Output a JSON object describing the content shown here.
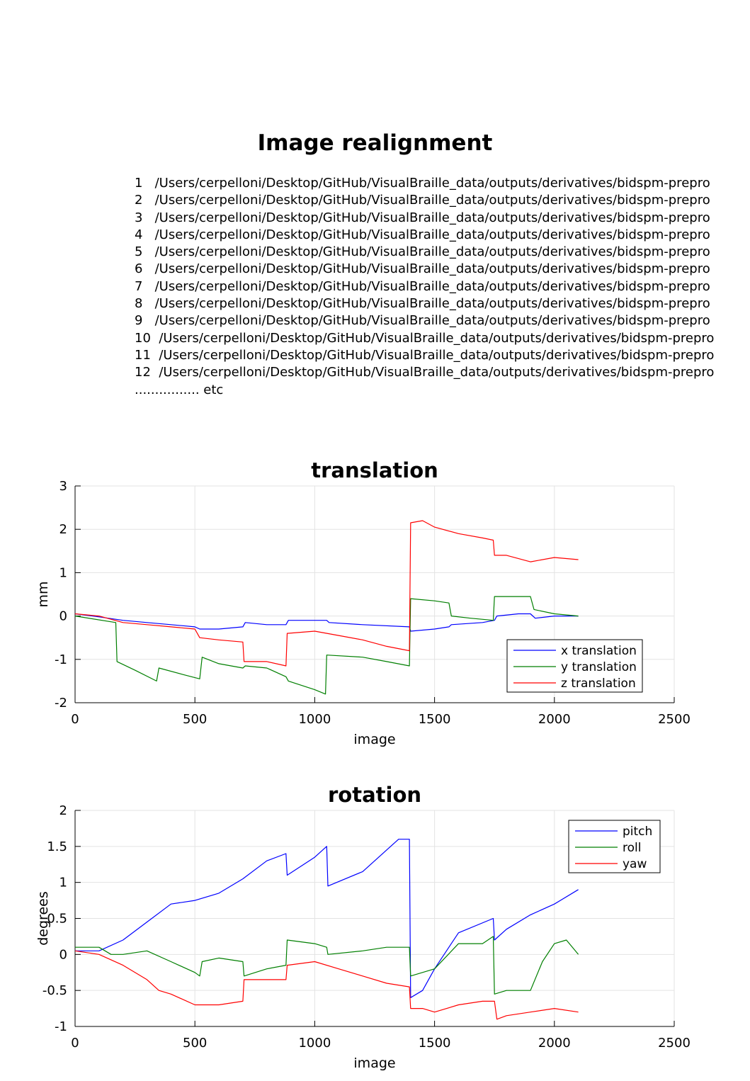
{
  "page": {
    "title": "Image realignment",
    "files": [
      "1   /Users/cerpelloni/Desktop/GitHub/VisualBraille_data/outputs/derivatives/bidspm-prepro",
      "2   /Users/cerpelloni/Desktop/GitHub/VisualBraille_data/outputs/derivatives/bidspm-prepro",
      "3   /Users/cerpelloni/Desktop/GitHub/VisualBraille_data/outputs/derivatives/bidspm-prepro",
      "4   /Users/cerpelloni/Desktop/GitHub/VisualBraille_data/outputs/derivatives/bidspm-prepro",
      "5   /Users/cerpelloni/Desktop/GitHub/VisualBraille_data/outputs/derivatives/bidspm-prepro",
      "6   /Users/cerpelloni/Desktop/GitHub/VisualBraille_data/outputs/derivatives/bidspm-prepro",
      "7   /Users/cerpelloni/Desktop/GitHub/VisualBraille_data/outputs/derivatives/bidspm-prepro",
      "8   /Users/cerpelloni/Desktop/GitHub/VisualBraille_data/outputs/derivatives/bidspm-prepro",
      "9   /Users/cerpelloni/Desktop/GitHub/VisualBraille_data/outputs/derivatives/bidspm-prepro",
      "10  /Users/cerpelloni/Desktop/GitHub/VisualBraille_data/outputs/derivatives/bidspm-prepro",
      "11  /Users/cerpelloni/Desktop/GitHub/VisualBraille_data/outputs/derivatives/bidspm-prepro",
      "12  /Users/cerpelloni/Desktop/GitHub/VisualBraille_data/outputs/derivatives/bidspm-prepro",
      "................ etc"
    ]
  },
  "chart_data": [
    {
      "type": "line",
      "title": "translation",
      "xlabel": "image",
      "ylabel": "mm",
      "xlim": [
        0,
        2500
      ],
      "ylim": [
        -2,
        3
      ],
      "xticks": [
        0,
        500,
        1000,
        1500,
        2000,
        2500
      ],
      "yticks": [
        3,
        2,
        1,
        0,
        -1,
        -2
      ],
      "grid": true,
      "legend_position": "bottom-right",
      "series": [
        {
          "name": "x translation",
          "color": "#0000ff",
          "x": [
            0,
            100,
            200,
            300,
            400,
            500,
            520,
            600,
            700,
            710,
            800,
            880,
            890,
            1000,
            1050,
            1060,
            1200,
            1395,
            1400,
            1500,
            1560,
            1570,
            1700,
            1750,
            1760,
            1850,
            1900,
            1920,
            2000,
            2100
          ],
          "y": [
            0.05,
            -0.02,
            -0.1,
            -0.15,
            -0.2,
            -0.25,
            -0.3,
            -0.3,
            -0.25,
            -0.15,
            -0.2,
            -0.2,
            -0.1,
            -0.1,
            -0.1,
            -0.15,
            -0.2,
            -0.25,
            -0.35,
            -0.3,
            -0.25,
            -0.2,
            -0.15,
            -0.1,
            0.0,
            0.05,
            0.05,
            -0.05,
            0.0,
            0.0
          ]
        },
        {
          "name": "y translation",
          "color": "#007f00",
          "x": [
            0,
            170,
            175,
            250,
            340,
            350,
            450,
            520,
            530,
            600,
            700,
            710,
            800,
            880,
            890,
            1000,
            1045,
            1050,
            1200,
            1300,
            1395,
            1400,
            1500,
            1560,
            1570,
            1650,
            1745,
            1750,
            1800,
            1900,
            1915,
            2000,
            2100
          ],
          "y": [
            0.0,
            -0.15,
            -1.05,
            -1.25,
            -1.5,
            -1.2,
            -1.35,
            -1.45,
            -0.95,
            -1.1,
            -1.2,
            -1.15,
            -1.2,
            -1.4,
            -1.5,
            -1.7,
            -1.8,
            -0.9,
            -0.95,
            -1.05,
            -1.15,
            0.4,
            0.35,
            0.3,
            0.0,
            -0.05,
            -0.1,
            0.45,
            0.45,
            0.45,
            0.15,
            0.05,
            0.0
          ]
        },
        {
          "name": "z translation",
          "color": "#ff0000",
          "x": [
            0,
            100,
            200,
            300,
            400,
            500,
            520,
            600,
            700,
            705,
            800,
            880,
            885,
            1000,
            1100,
            1200,
            1300,
            1395,
            1400,
            1450,
            1500,
            1600,
            1700,
            1745,
            1750,
            1800,
            1900,
            2000,
            2100
          ],
          "y": [
            0.05,
            0.0,
            -0.15,
            -0.2,
            -0.25,
            -0.3,
            -0.5,
            -0.55,
            -0.6,
            -1.05,
            -1.05,
            -1.15,
            -0.4,
            -0.35,
            -0.45,
            -0.55,
            -0.7,
            -0.8,
            2.15,
            2.2,
            2.05,
            1.9,
            1.8,
            1.75,
            1.4,
            1.4,
            1.25,
            1.35,
            1.3
          ]
        }
      ]
    },
    {
      "type": "line",
      "title": "rotation",
      "xlabel": "image",
      "ylabel": "degrees",
      "xlim": [
        0,
        2500
      ],
      "ylim": [
        -1,
        2
      ],
      "xticks": [
        0,
        500,
        1000,
        1500,
        2000,
        2500
      ],
      "yticks": [
        2,
        1.5,
        1,
        0.5,
        0,
        -0.5,
        -1
      ],
      "grid": true,
      "legend_position": "top-right",
      "series": [
        {
          "name": "pitch",
          "color": "#0000ff",
          "x": [
            0,
            100,
            200,
            300,
            400,
            500,
            600,
            700,
            800,
            880,
            885,
            1000,
            1050,
            1055,
            1200,
            1300,
            1350,
            1395,
            1400,
            1450,
            1500,
            1600,
            1745,
            1750,
            1800,
            1900,
            2000,
            2100
          ],
          "y": [
            0.05,
            0.05,
            0.2,
            0.45,
            0.7,
            0.75,
            0.85,
            1.05,
            1.3,
            1.4,
            1.1,
            1.35,
            1.5,
            0.95,
            1.15,
            1.45,
            1.6,
            1.6,
            -0.6,
            -0.5,
            -0.2,
            0.3,
            0.5,
            0.2,
            0.35,
            0.55,
            0.7,
            0.9
          ]
        },
        {
          "name": "roll",
          "color": "#007f00",
          "x": [
            0,
            100,
            150,
            200,
            300,
            400,
            500,
            520,
            530,
            600,
            700,
            705,
            800,
            880,
            885,
            1000,
            1050,
            1055,
            1200,
            1300,
            1395,
            1400,
            1500,
            1600,
            1700,
            1745,
            1750,
            1800,
            1900,
            1950,
            2000,
            2050,
            2100
          ],
          "y": [
            0.1,
            0.1,
            0.0,
            0.0,
            0.05,
            -0.1,
            -0.25,
            -0.3,
            -0.1,
            -0.05,
            -0.1,
            -0.3,
            -0.2,
            -0.15,
            0.2,
            0.15,
            0.1,
            0.0,
            0.05,
            0.1,
            0.1,
            -0.3,
            -0.2,
            0.15,
            0.15,
            0.25,
            -0.55,
            -0.5,
            -0.5,
            -0.1,
            0.15,
            0.2,
            0.0
          ]
        },
        {
          "name": "yaw",
          "color": "#ff0000",
          "x": [
            0,
            100,
            200,
            300,
            350,
            400,
            500,
            600,
            700,
            705,
            800,
            880,
            885,
            1000,
            1100,
            1200,
            1300,
            1395,
            1400,
            1450,
            1500,
            1600,
            1700,
            1750,
            1760,
            1800,
            1900,
            2000,
            2100
          ],
          "y": [
            0.05,
            0.0,
            -0.15,
            -0.35,
            -0.5,
            -0.55,
            -0.7,
            -0.7,
            -0.65,
            -0.35,
            -0.35,
            -0.35,
            -0.15,
            -0.1,
            -0.2,
            -0.3,
            -0.4,
            -0.45,
            -0.75,
            -0.75,
            -0.8,
            -0.7,
            -0.65,
            -0.65,
            -0.9,
            -0.85,
            -0.8,
            -0.75,
            -0.8
          ]
        }
      ]
    }
  ]
}
